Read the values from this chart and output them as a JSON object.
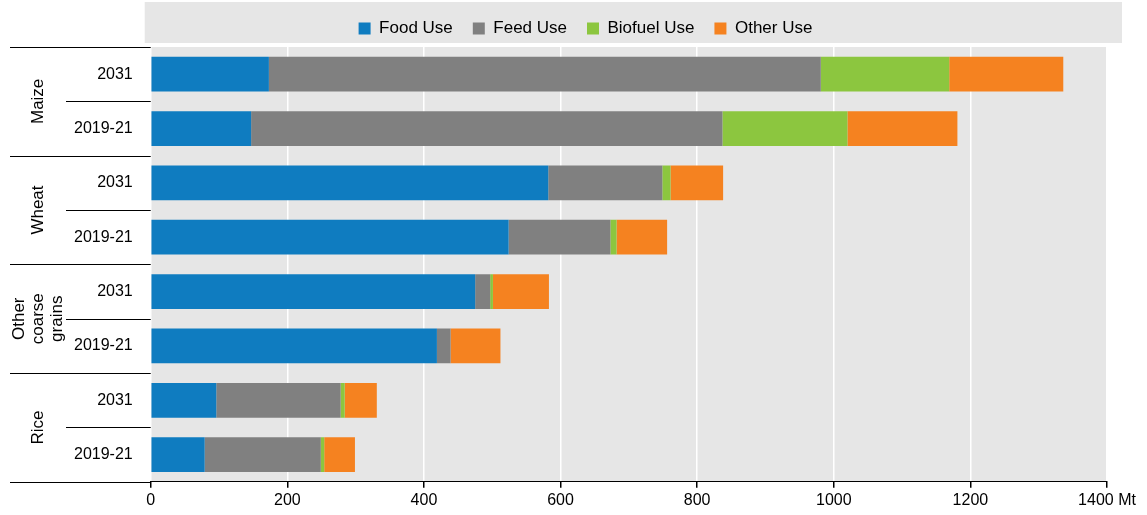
{
  "chart_data": {
    "type": "bar",
    "orientation": "horizontal",
    "stacked": true,
    "categories": [
      "2031",
      "2019-21",
      "2031",
      "2019-21",
      "2031",
      "2019-21",
      "2031",
      "2019-21"
    ],
    "series": [
      {
        "name": "Food Use",
        "color": "#0f7cc0",
        "values": [
          173,
          147,
          582,
          524,
          475,
          419,
          96,
          79
        ]
      },
      {
        "name": "Feed Use",
        "color": "#808080",
        "values": [
          808,
          690,
          167,
          149,
          22,
          20,
          182,
          170
        ]
      },
      {
        "name": "Biofuel Use",
        "color": "#8cc63f",
        "values": [
          188,
          183,
          12,
          9,
          4,
          0,
          6,
          5
        ]
      },
      {
        "name": "Other Use",
        "color": "#f58220",
        "values": [
          167,
          161,
          77,
          74,
          82,
          73,
          47,
          45
        ]
      }
    ],
    "annotations": [
      "Maize",
      "Wheat",
      "Other coarse grains",
      "Rice"
    ],
    "xlim": [
      0,
      1400
    ],
    "xticks": [
      0,
      200,
      400,
      600,
      800,
      1000,
      1200,
      {
        "value": 1400,
        "label": "1400 Mt"
      }
    ],
    "grid": "x",
    "legend": "top"
  }
}
